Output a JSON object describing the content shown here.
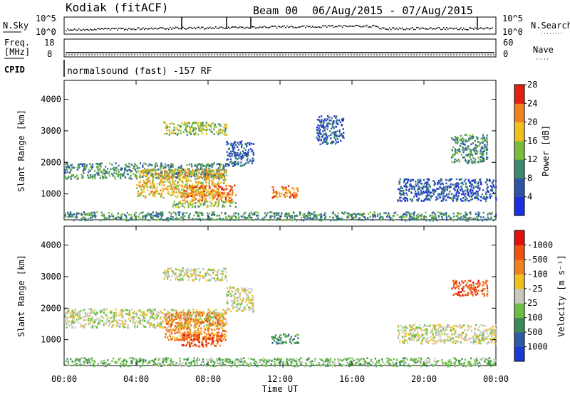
{
  "header": {
    "title": "Kodiak (fitACF)",
    "beam_label": "Beam 00",
    "date_range": "06/Aug/2015 - 07/Aug/2015"
  },
  "noise_panel": {
    "left_label": "N.Sky",
    "right_label": "N.Search",
    "left_ticks": [
      "10^5",
      "10^0"
    ],
    "right_ticks": [
      "10^5",
      "10^0"
    ]
  },
  "freq_panel": {
    "left_label_line1": "Freq.",
    "left_label_line2": "[MHz]",
    "right_label": "Nave",
    "left_ticks": [
      "18",
      "8"
    ],
    "right_ticks": [
      "60",
      "0"
    ]
  },
  "cpid": {
    "label": "CPID",
    "text": "normalsound (fast) -157 RF"
  },
  "x_axis": {
    "title": "Time UT",
    "ticks": [
      "00:00",
      "04:00",
      "08:00",
      "12:00",
      "16:00",
      "20:00",
      "00:00"
    ]
  },
  "chart_data": [
    {
      "type": "heatmap",
      "ylabel": "Slant Range [km]",
      "ylim": [
        180,
        4600
      ],
      "yticks": [
        1000,
        2000,
        3000,
        4000
      ],
      "xlim_hours": [
        0,
        24
      ],
      "colorbar_label": "Power [dB]",
      "colorbar_ticks": [
        "4",
        "8",
        "12",
        "16",
        "20",
        "24",
        "28"
      ],
      "colorbar_colors": [
        "#1a2fe0",
        "#2e54a8",
        "#3d8a6e",
        "#7cbc3c",
        "#f0c020",
        "#f08020",
        "#e02010"
      ],
      "echo_regions": [
        {
          "t": [
            0.0,
            9.0
          ],
          "range_km": [
            1500,
            2000
          ],
          "level": 2
        },
        {
          "t": [
            4.0,
            9.0
          ],
          "range_km": [
            900,
            1800
          ],
          "level": 4
        },
        {
          "t": [
            6.5,
            9.5
          ],
          "range_km": [
            800,
            1300
          ],
          "level": 5
        },
        {
          "t": [
            6.0,
            9.5
          ],
          "range_km": [
            600,
            800
          ],
          "level": 3
        },
        {
          "t": [
            5.5,
            9.0
          ],
          "range_km": [
            2900,
            3300
          ],
          "level": 3
        },
        {
          "t": [
            9.0,
            10.5
          ],
          "range_km": [
            1900,
            2700
          ],
          "level": 1
        },
        {
          "t": [
            11.5,
            13.0
          ],
          "range_km": [
            900,
            1300
          ],
          "level": 5
        },
        {
          "t": [
            14.0,
            15.5
          ],
          "range_km": [
            2600,
            3500
          ],
          "level": 1
        },
        {
          "t": [
            18.5,
            24.0
          ],
          "range_km": [
            800,
            1500
          ],
          "level": 1
        },
        {
          "t": [
            21.5,
            23.5
          ],
          "range_km": [
            2000,
            2900
          ],
          "level": 2
        },
        {
          "t": [
            0.0,
            24.0
          ],
          "range_km": [
            180,
            450
          ],
          "level": 2
        }
      ]
    },
    {
      "type": "heatmap",
      "ylabel": "Slant Range [km]",
      "ylim": [
        180,
        4600
      ],
      "yticks": [
        1000,
        2000,
        3000,
        4000
      ],
      "xlim_hours": [
        0,
        24
      ],
      "colorbar_label": "Velocity [m s⁻¹]",
      "colorbar_ticks": [
        "1000",
        "500",
        "100",
        "25",
        "-25",
        "-100",
        "-500",
        "-1000"
      ],
      "colorbar_colors": [
        "#1a3ad0",
        "#2e5aa8",
        "#3a8a5a",
        "#6ac040",
        "#c8c8c0",
        "#f0c020",
        "#f08020",
        "#f05010",
        "#e01010"
      ],
      "echo_regions": [
        {
          "t": [
            0.0,
            9.0
          ],
          "range_km": [
            1400,
            2000
          ],
          "level": 4
        },
        {
          "t": [
            5.5,
            9.0
          ],
          "range_km": [
            1000,
            1900
          ],
          "level": 6
        },
        {
          "t": [
            6.5,
            8.8
          ],
          "range_km": [
            800,
            1200
          ],
          "level": 7
        },
        {
          "t": [
            5.5,
            9.0
          ],
          "range_km": [
            2900,
            3300
          ],
          "level": 4
        },
        {
          "t": [
            9.0,
            10.5
          ],
          "range_km": [
            1900,
            2700
          ],
          "level": 4
        },
        {
          "t": [
            11.5,
            13.0
          ],
          "range_km": [
            900,
            1200
          ],
          "level": 2
        },
        {
          "t": [
            18.5,
            24.0
          ],
          "range_km": [
            900,
            1500
          ],
          "level": 4
        },
        {
          "t": [
            21.5,
            23.5
          ],
          "range_km": [
            2400,
            2900
          ],
          "level": 7
        },
        {
          "t": [
            0.0,
            24.0
          ],
          "range_km": [
            180,
            450
          ],
          "level": 3
        }
      ]
    }
  ]
}
